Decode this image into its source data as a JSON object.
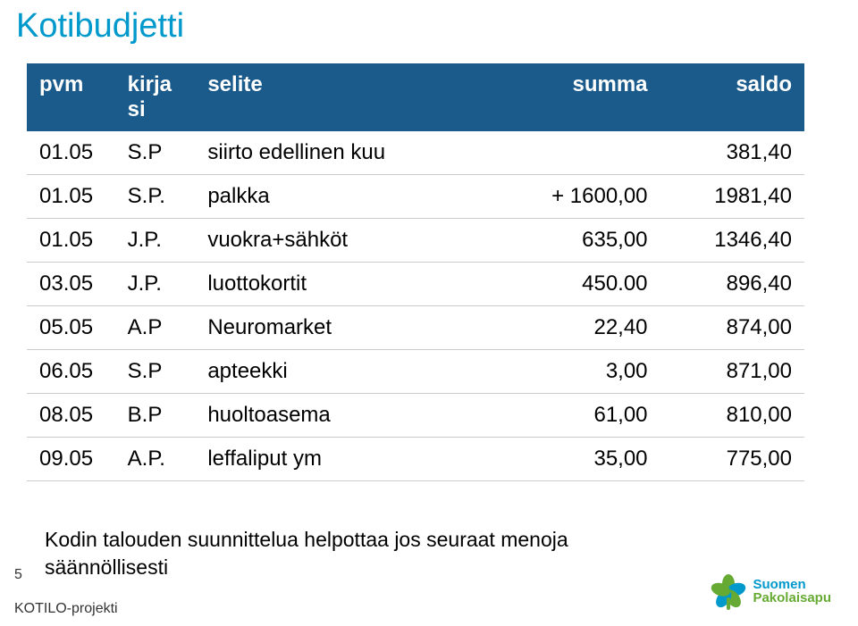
{
  "title": "Kotibudjetti",
  "table": {
    "columns": [
      "pvm",
      "kirja\nsi",
      "selite",
      "summa",
      "saldo"
    ],
    "column_align": [
      "left",
      "left",
      "left",
      "right",
      "right"
    ],
    "header_bg": "#1a5b8c",
    "header_color": "#ffffff",
    "row_border": "#cccccc",
    "font_size": 24,
    "rows": [
      [
        "01.05",
        "S.P",
        "siirto edellinen kuu",
        "",
        "381,40"
      ],
      [
        "01.05",
        "S.P.",
        "palkka",
        "+ 1600,00",
        "1981,40"
      ],
      [
        "01.05",
        "J.P.",
        "vuokra+sähköt",
        "635,00",
        "1346,40"
      ],
      [
        "03.05",
        "J.P.",
        "luottokortit",
        "450.00",
        "896,40"
      ],
      [
        "05.05",
        "A.P",
        "Neuromarket",
        "22,40",
        "874,00"
      ],
      [
        "06.05",
        "S.P",
        "apteekki",
        "3,00",
        "871,00"
      ],
      [
        "08.05",
        "B.P",
        "huoltoasema",
        "61,00",
        "810,00"
      ],
      [
        "09.05",
        "A.P.",
        "leffaliput ym",
        "35,00",
        "775,00"
      ]
    ]
  },
  "note_line1": "Kodin talouden suunnittelua  helpottaa jos seuraat menoja",
  "note_line2": "säännöllisesti",
  "slide_number": "5",
  "project": "KOTILO-projekti",
  "logo": {
    "line1": "Suomen",
    "line2": "Pakolaisapu",
    "petal_colors": [
      "#66aa33",
      "#0099cc",
      "#66aa33",
      "#0099cc",
      "#66aa33"
    ],
    "stem_color": "#66aa33"
  },
  "colors": {
    "title": "#0099cc",
    "background": "#ffffff"
  }
}
